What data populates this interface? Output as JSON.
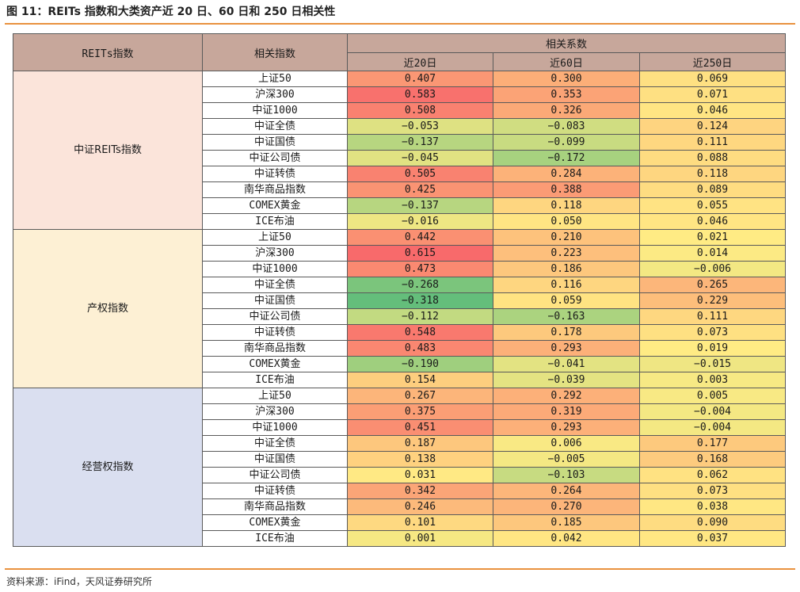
{
  "figure_title": "图 11：REITs 指数和大类资产近 20 日、60 日和 250 日相关性",
  "source_note": "资料来源：iFind，天风证券研究所",
  "table": {
    "header_group": "REITs指数",
    "header_index": "相关指数",
    "header_coef": "相关系数",
    "periods": [
      "近20日",
      "近60日",
      "近250日"
    ],
    "groups": [
      {
        "name": "中证REITs指数",
        "color": "#fbe4da",
        "rows": [
          {
            "index": "上证50",
            "v": [
              "0.407",
              "0.300",
              "0.069"
            ]
          },
          {
            "index": "沪深300",
            "v": [
              "0.583",
              "0.353",
              "0.071"
            ]
          },
          {
            "index": "中证1000",
            "v": [
              "0.508",
              "0.326",
              "0.046"
            ]
          },
          {
            "index": "中证全债",
            "v": [
              "-0.053",
              "-0.083",
              "0.124"
            ]
          },
          {
            "index": "中证国债",
            "v": [
              "-0.137",
              "-0.099",
              "0.111"
            ]
          },
          {
            "index": "中证公司债",
            "v": [
              "-0.045",
              "-0.172",
              "0.088"
            ]
          },
          {
            "index": "中证转债",
            "v": [
              "0.505",
              "0.284",
              "0.118"
            ]
          },
          {
            "index": "南华商品指数",
            "v": [
              "0.425",
              "0.388",
              "0.089"
            ]
          },
          {
            "index": "COMEX黄金",
            "v": [
              "-0.137",
              "0.118",
              "0.055"
            ]
          },
          {
            "index": "ICE布油",
            "v": [
              "-0.016",
              "0.050",
              "0.046"
            ]
          }
        ]
      },
      {
        "name": "产权指数",
        "color": "#fdf0d4",
        "rows": [
          {
            "index": "上证50",
            "v": [
              "0.442",
              "0.210",
              "0.021"
            ]
          },
          {
            "index": "沪深300",
            "v": [
              "0.615",
              "0.223",
              "0.014"
            ]
          },
          {
            "index": "中证1000",
            "v": [
              "0.473",
              "0.186",
              "-0.006"
            ]
          },
          {
            "index": "中证全债",
            "v": [
              "-0.268",
              "0.116",
              "0.265"
            ]
          },
          {
            "index": "中证国债",
            "v": [
              "-0.318",
              "0.059",
              "0.229"
            ]
          },
          {
            "index": "中证公司债",
            "v": [
              "-0.112",
              "-0.163",
              "0.111"
            ]
          },
          {
            "index": "中证转债",
            "v": [
              "0.548",
              "0.178",
              "0.073"
            ]
          },
          {
            "index": "南华商品指数",
            "v": [
              "0.483",
              "0.293",
              "0.019"
            ]
          },
          {
            "index": "COMEX黄金",
            "v": [
              "-0.190",
              "-0.041",
              "-0.015"
            ]
          },
          {
            "index": "ICE布油",
            "v": [
              "0.154",
              "-0.039",
              "0.003"
            ]
          }
        ]
      },
      {
        "name": "经营权指数",
        "color": "#dadff0",
        "rows": [
          {
            "index": "上证50",
            "v": [
              "0.267",
              "0.292",
              "0.005"
            ]
          },
          {
            "index": "沪深300",
            "v": [
              "0.375",
              "0.319",
              "-0.004"
            ]
          },
          {
            "index": "中证1000",
            "v": [
              "0.451",
              "0.293",
              "-0.004"
            ]
          },
          {
            "index": "中证全债",
            "v": [
              "0.187",
              "0.006",
              "0.177"
            ]
          },
          {
            "index": "中证国债",
            "v": [
              "0.138",
              "-0.005",
              "0.168"
            ]
          },
          {
            "index": "中证公司债",
            "v": [
              "0.031",
              "-0.103",
              "0.062"
            ]
          },
          {
            "index": "中证转债",
            "v": [
              "0.342",
              "0.264",
              "0.073"
            ]
          },
          {
            "index": "南华商品指数",
            "v": [
              "0.246",
              "0.270",
              "0.038"
            ]
          },
          {
            "index": "COMEX黄金",
            "v": [
              "0.101",
              "0.185",
              "0.090"
            ]
          },
          {
            "index": "ICE布油",
            "v": [
              "0.001",
              "0.042",
              "0.037"
            ]
          }
        ]
      }
    ]
  }
}
